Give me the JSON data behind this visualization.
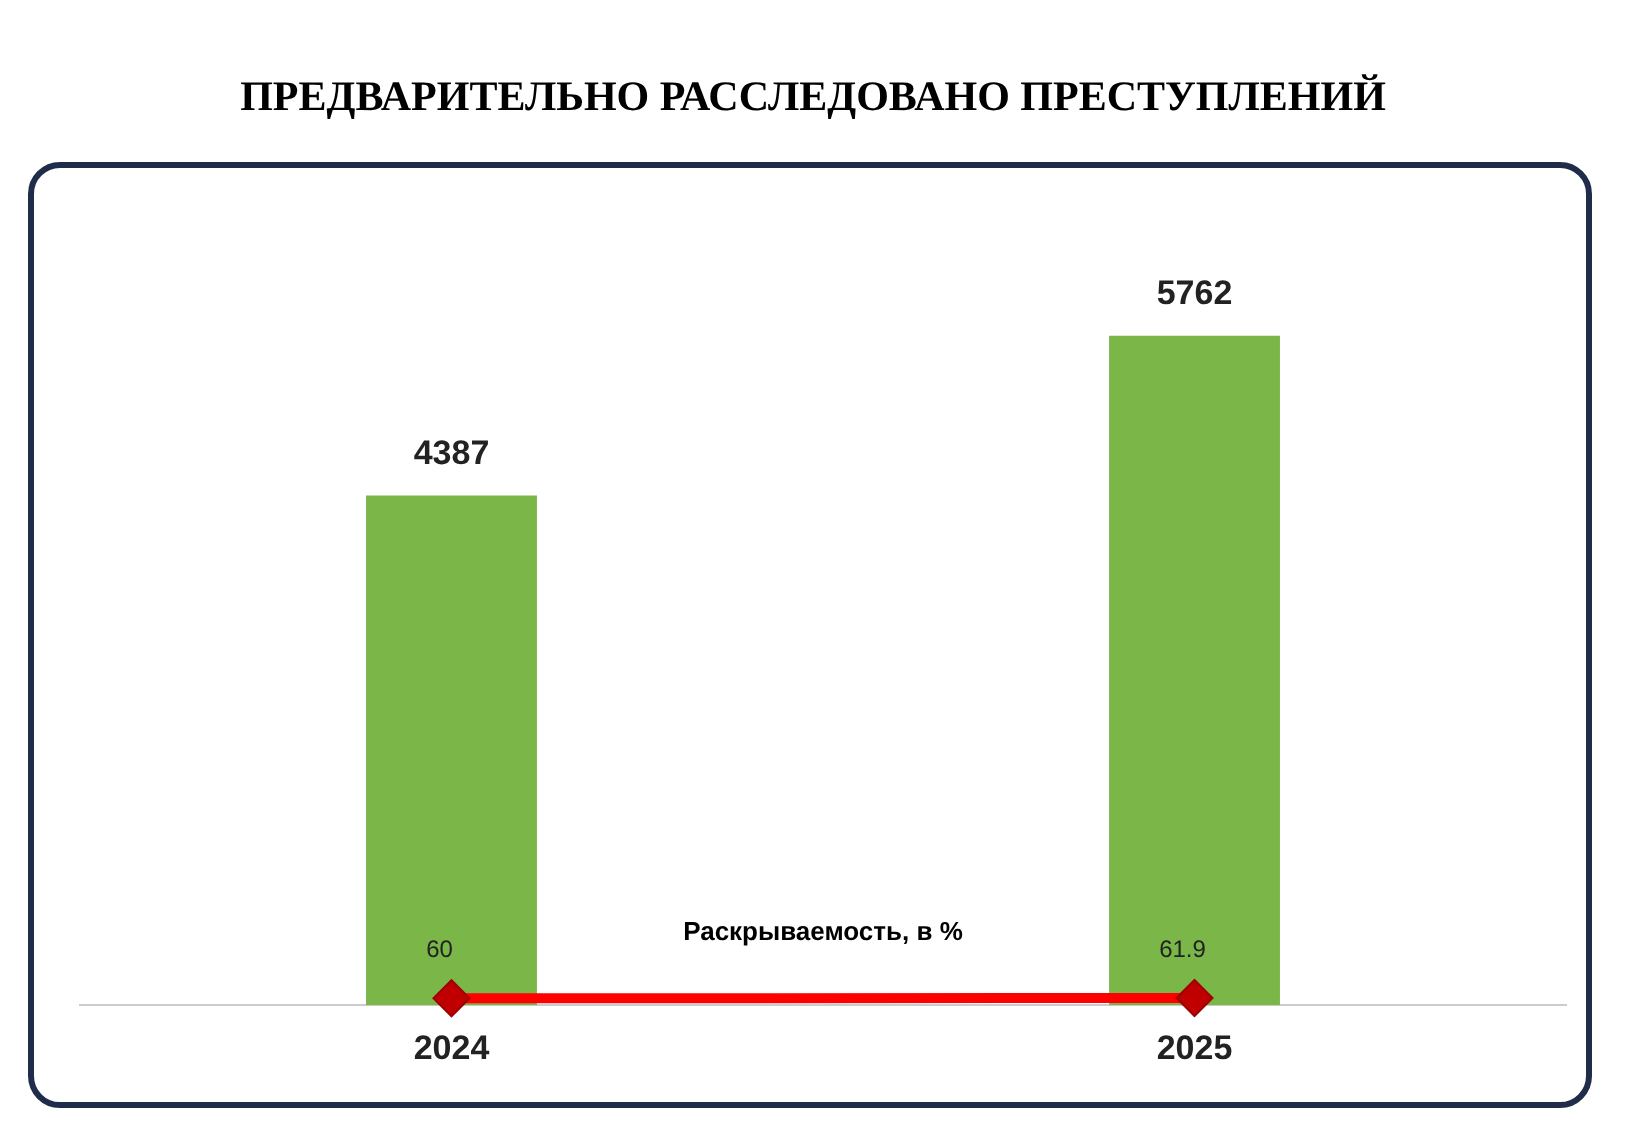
{
  "chart_data": {
    "type": "bar",
    "title": "ПРЕДВАРИТЕЛЬНО РАССЛЕДОВАНО ПРЕСТУПЛЕНИЙ",
    "categories": [
      "2024",
      "2025"
    ],
    "series": [
      {
        "color": "#7ab648",
        "values": [
          4387,
          5762
        ]
      },
      {
        "type": "line",
        "name": "Раскрываемость, в %",
        "color": "#ff0000",
        "values": [
          60,
          61.9
        ]
      }
    ],
    "marker": "diamond",
    "data_labels": true,
    "tick_labels": "x",
    "grid": false
  }
}
